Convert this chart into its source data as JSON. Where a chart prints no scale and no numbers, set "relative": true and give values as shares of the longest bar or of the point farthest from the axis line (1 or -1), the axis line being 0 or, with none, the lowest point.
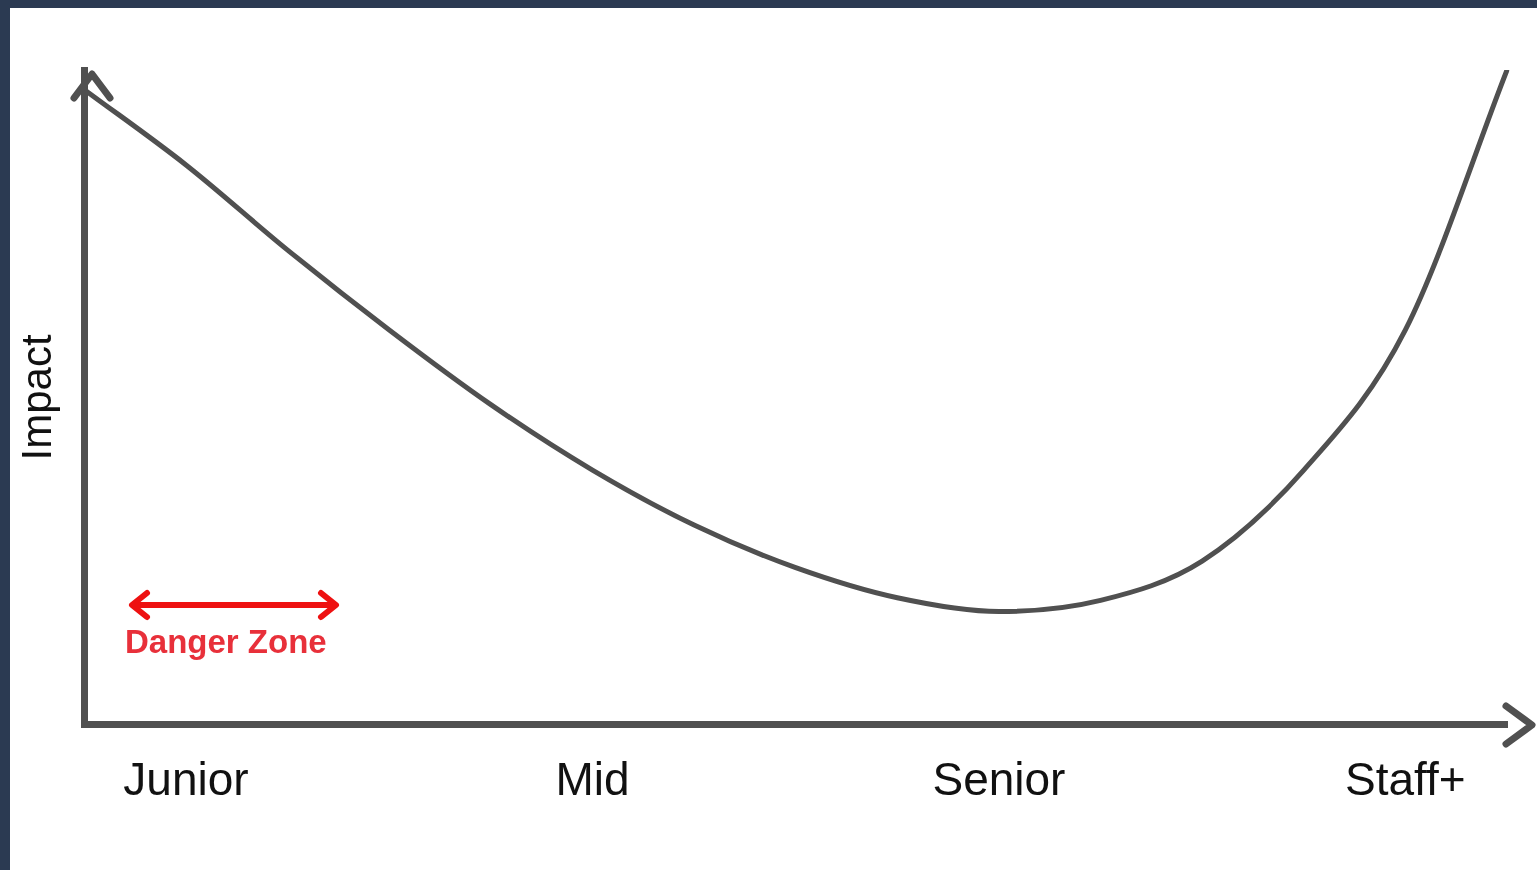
{
  "chart_data": {
    "type": "line",
    "relative": true,
    "ylabel": "Impact",
    "categories": [
      null,
      "Junior",
      null,
      null,
      null,
      "Mid",
      null,
      null,
      null,
      "Senior",
      null,
      null,
      null,
      "Staff+",
      null
    ],
    "series": [
      {
        "color": "#505050",
        "values": [
          0.97,
          0.855,
          0.725,
          0.603,
          0.489,
          0.389,
          0.305,
          0.24,
          0.194,
          0.173,
          0.19,
          0.25,
          0.389,
          0.603,
          1
        ]
      }
    ],
    "annotations": [
      "Danger Zone"
    ],
    "legend": false,
    "marker": "none",
    "line_style": "solid"
  }
}
